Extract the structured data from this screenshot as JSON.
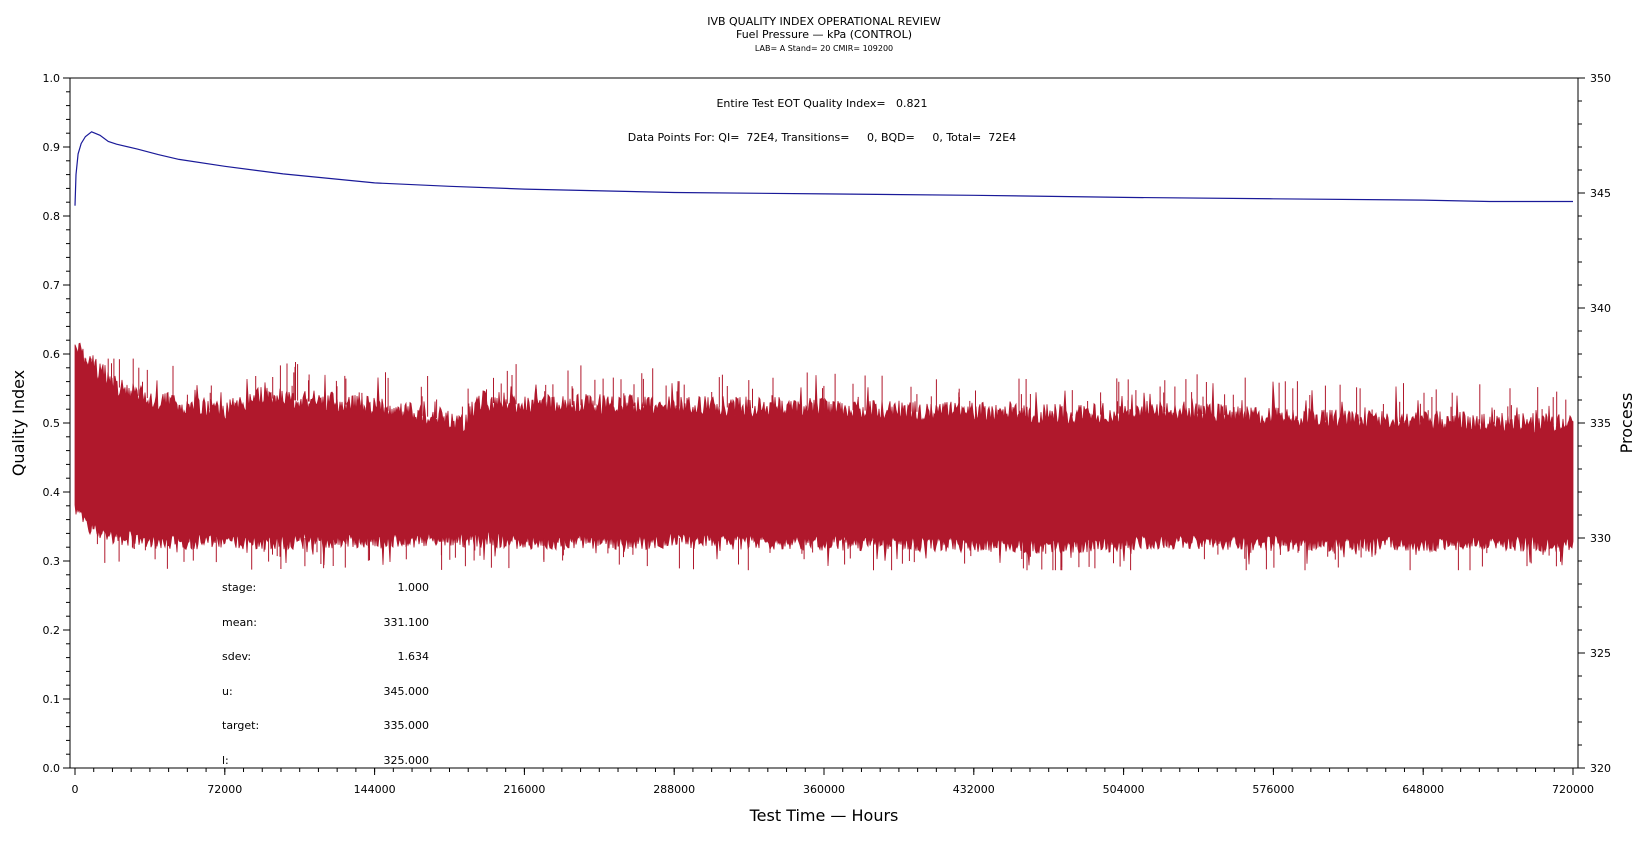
{
  "chart_data": {
    "type": "line",
    "title": "IVB QUALITY INDEX OPERATIONAL REVIEW",
    "subtitle": "Fuel Pressure — kPa (CONTROL)",
    "subtitle2": "LAB= A Stand= 20 CMIR= 109200",
    "xlabel": "Test Time — Hours",
    "ylabel": "Quality Index",
    "y2label": "Process",
    "xlim": [
      0,
      720000
    ],
    "ylim": [
      0,
      1
    ],
    "y2lim": [
      320,
      350
    ],
    "x_ticks": [
      "0",
      "72000",
      "144000",
      "216000",
      "288000",
      "360000",
      "432000",
      "504000",
      "576000",
      "648000",
      "720000"
    ],
    "y_ticks": [
      "0.0",
      "0.1",
      "0.2",
      "0.3",
      "0.4",
      "0.5",
      "0.6",
      "0.7",
      "0.8",
      "0.9",
      "1.0"
    ],
    "y2_ticks": [
      "320",
      "325",
      "330",
      "335",
      "340",
      "345",
      "350"
    ],
    "annotations": {
      "eot": "Entire Test EOT Quality Index=   0.821",
      "points": "Data Points For: QI=  72E4, Transitions=     0, BQD=     0, Total=  72E4"
    },
    "series": [
      {
        "axis": "left",
        "color": "#1a1a99",
        "x": [
          0,
          500,
          1500,
          3000,
          5000,
          8000,
          12000,
          16000,
          20000,
          30000,
          40000,
          50000,
          72000,
          100000,
          144000,
          180000,
          216000,
          288000,
          360000,
          432000,
          504000,
          576000,
          648000,
          680000,
          720000
        ],
        "y": [
          0.815,
          0.86,
          0.89,
          0.905,
          0.915,
          0.922,
          0.917,
          0.908,
          0.904,
          0.897,
          0.889,
          0.882,
          0.872,
          0.861,
          0.848,
          0.843,
          0.839,
          0.834,
          0.832,
          0.83,
          0.827,
          0.825,
          0.823,
          0.821,
          0.821
        ]
      },
      {
        "axis": "right",
        "color": "#b0182c",
        "x": [
          0,
          1500,
          5000,
          10000,
          20000,
          30000,
          50000,
          72000,
          90000,
          130000,
          175000,
          185000,
          195000,
          216000,
          300000,
          400000,
          480000,
          520000,
          600000,
          720000
        ],
        "upper": [
          339.0,
          338.7,
          338.2,
          337.8,
          337.1,
          336.7,
          336.2,
          336.0,
          336.6,
          336.3,
          335.7,
          335.3,
          336.4,
          336.3,
          336.2,
          336.0,
          335.8,
          336.0,
          335.6,
          335.4
        ],
        "lower": [
          331.0,
          330.7,
          330.3,
          330.0,
          329.7,
          329.6,
          329.5,
          329.5,
          329.5,
          329.5,
          329.6,
          329.6,
          329.6,
          329.5,
          329.5,
          329.4,
          329.3,
          329.5,
          329.4,
          329.4
        ],
        "spike_max": 337.8,
        "spike_min": 328.6
      }
    ]
  },
  "stats": [
    {
      "label": "stage:",
      "value": "1.000"
    },
    {
      "label": "mean:",
      "value": "331.100"
    },
    {
      "label": "sdev:",
      "value": "1.634"
    },
    {
      "label": "u:",
      "value": "345.000"
    },
    {
      "label": "target:",
      "value": "335.000"
    },
    {
      "label": "l:",
      "value": "325.000"
    }
  ]
}
